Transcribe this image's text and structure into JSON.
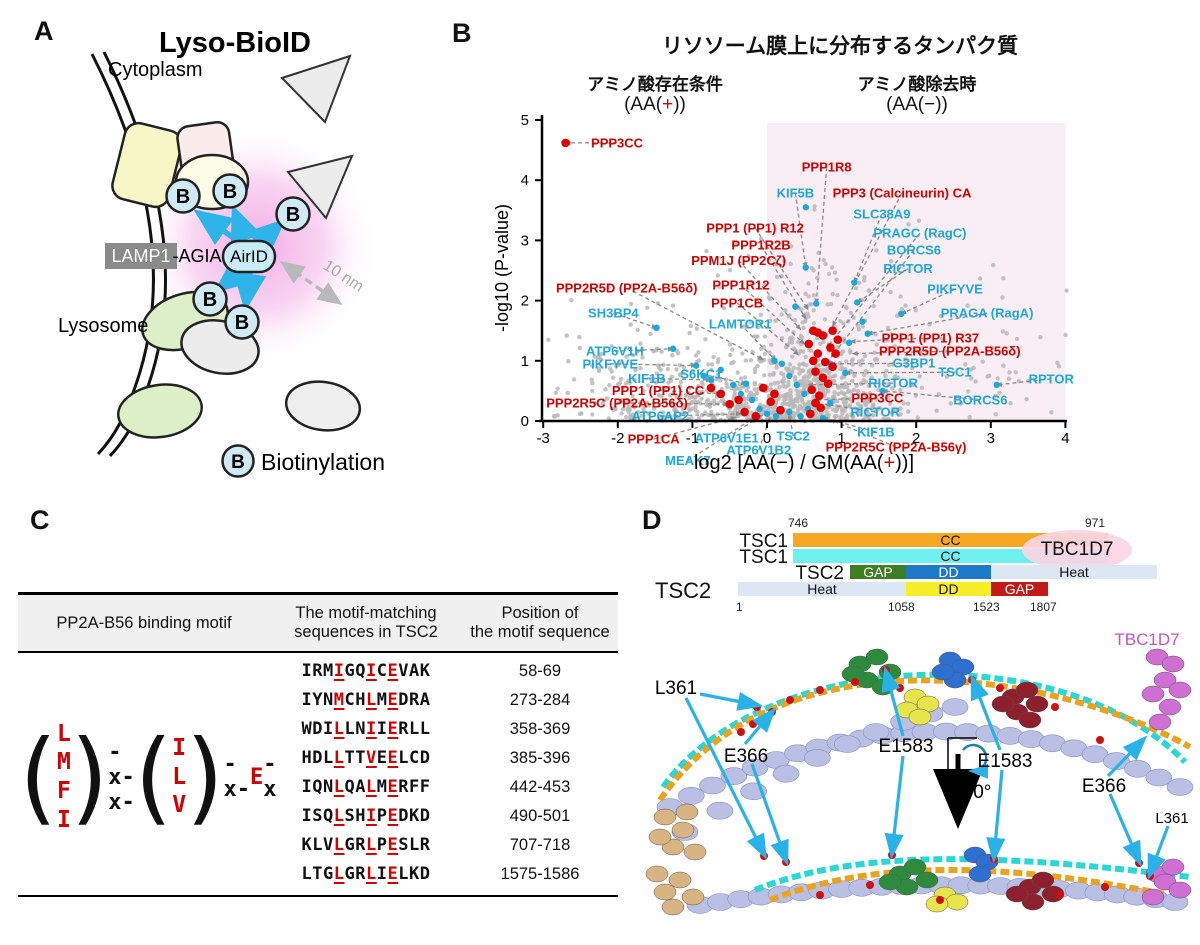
{
  "panels": {
    "A": {
      "panel_label": "A",
      "title": "Lyso-BioID",
      "cytoplasm": "Cytoplasm",
      "lysosome": "Lysosome",
      "lamp1": "LAMP1",
      "agia": "-AGIA-",
      "airid": "AirID",
      "distance": "10 nm",
      "b_letter": "B",
      "legend": "Biotinylation"
    },
    "B": {
      "panel_label": "B",
      "title": "リソソーム膜上に分布するタンパク質",
      "cond_left": "アミノ酸存在条件",
      "cond_left2_parts": [
        "(AA(",
        "+",
        "))"
      ],
      "cond_right": "アミノ酸除去時",
      "cond_right2": "(AA(−))",
      "ylabel": "-log10 (P-value)",
      "xlabel_parts": [
        "log2 [AA(−) / GM(AA(",
        "+",
        "))]"
      ]
    },
    "C": {
      "panel_label": "C",
      "headers": [
        [
          "PP2A-B56 binding motif"
        ],
        [
          "The motif-matching",
          "sequences in TSC2"
        ],
        [
          "Position of",
          "the motif sequence"
        ]
      ],
      "motif": {
        "group1": [
          "L",
          "M",
          "F",
          "I"
        ],
        "linker1": "-x-x-",
        "group2": [
          "I",
          "L",
          "V"
        ],
        "linker2": "-x-",
        "glu": "E",
        "linker3": "-x"
      },
      "red_indices": [
        3,
        6,
        8
      ],
      "rows": [
        {
          "seq": "IRMIGQICEVAK",
          "pos": "58-69"
        },
        {
          "seq": "IYNMCHLMEDRA",
          "pos": "273-284"
        },
        {
          "seq": "WDILLNIIERLL",
          "pos": "358-369"
        },
        {
          "seq": "HDLLTTVEELCD",
          "pos": "385-396"
        },
        {
          "seq": "IQNLQALMERFF",
          "pos": "442-453"
        },
        {
          "seq": "ISQLSHIPEDKD",
          "pos": "490-501"
        },
        {
          "seq": "KLVLGRLPESLR",
          "pos": "707-718"
        },
        {
          "seq": "LTGLGRLIELKD",
          "pos": "1575-1586"
        }
      ]
    },
    "D": {
      "panel_label": "D",
      "tsc1_row1": {
        "label": "TSC1",
        "start": "746",
        "end": "971",
        "domain": "CC"
      },
      "tsc1_row2": {
        "label": "TSC1",
        "domain": "CC"
      },
      "tbc1d7": "TBC1D7",
      "tsc2_row1": {
        "label": "TSC2",
        "segments": [
          "GAP",
          "DD",
          "Heat"
        ]
      },
      "tsc2_row2": {
        "label": "TSC2",
        "segments": [
          "Heat",
          "DD",
          "GAP"
        ],
        "ticks": [
          "1",
          "1058",
          "1523",
          "1807"
        ]
      },
      "residue_labels": [
        "L361",
        "E366",
        "E1583",
        "E1583",
        "E366",
        "L361"
      ],
      "tbc1d7_struct": "TBC1D7",
      "rotation": "90°"
    }
  },
  "chart_data": {
    "type": "scatter",
    "title": "リソソーム膜上に分布するタンパク質",
    "xlabel": "log2 [AA(−) / GM(AA(+))]",
    "ylabel": "-log10 (P-value)",
    "xlim": [
      -3,
      4
    ],
    "ylim": [
      0,
      5
    ],
    "xticks": [
      -3,
      -2,
      -1,
      0,
      1,
      2,
      3,
      4
    ],
    "yticks": [
      0,
      1,
      2,
      3,
      4,
      5
    ],
    "highlight_region": {
      "x0": 0,
      "x1": 4,
      "y0": 0,
      "y1": 4.95,
      "color": "#f8eef3"
    },
    "colors": {
      "red": "#d40000",
      "blue": "#1ba8dd",
      "gray": "#b9b9b9",
      "leader": "#8a8a8a"
    },
    "annotations": [
      [
        "PPP3CC",
        "r",
        -2.01,
        4.62,
        -2.7,
        4.62
      ],
      [
        "PPP1 (PP1) R12",
        "r",
        -0.16,
        3.21,
        0.55,
        1.85
      ],
      [
        "PPP1R2B",
        "r",
        -0.08,
        2.92,
        0.52,
        1.7
      ],
      [
        "PPM1J (PP2Cζ)",
        "r",
        -0.38,
        2.67,
        0.45,
        1.52
      ],
      [
        "PPP2R5D (PP2A-B56δ)",
        "r",
        -1.88,
        2.21,
        -0.05,
        1.02
      ],
      [
        "PPP1R12",
        "r",
        -0.35,
        2.26,
        0.5,
        1.28
      ],
      [
        "PPP1CB",
        "r",
        -0.4,
        1.96,
        0.42,
        1.1
      ],
      [
        "SH3BP4",
        "b",
        -2.06,
        1.79,
        -1.48,
        1.55
      ],
      [
        "LAMTOR1",
        "b",
        -0.36,
        1.61,
        0.12,
        1.0
      ],
      [
        "ATP6V1H",
        "b",
        -2.04,
        1.16,
        -1.26,
        1.2
      ],
      [
        "PIKFYVE",
        "b",
        -2.1,
        0.95,
        -0.95,
        0.92
      ],
      [
        "KIF1B",
        "b",
        -1.61,
        0.71,
        -0.75,
        0.68
      ],
      [
        "S6KC1",
        "b",
        -0.88,
        0.78,
        -0.28,
        0.62
      ],
      [
        "PPP1 (PP1) CC",
        "r",
        -1.46,
        0.51,
        -0.62,
        0.45
      ],
      [
        "PPP2R5C (PP2A-B56δ)",
        "r",
        -2.01,
        0.3,
        -0.52,
        0.28
      ],
      [
        "ATP6AP2",
        "b",
        -1.43,
        0.08,
        -0.35,
        0.12
      ],
      [
        "PPP1CA",
        "r",
        -1.52,
        -0.3,
        -0.42,
        0.06
      ],
      [
        "MEAK7",
        "b",
        -1.06,
        -0.66,
        -0.18,
        0.05
      ],
      [
        "ATP6V1E1",
        "b",
        -0.54,
        -0.28,
        -0.06,
        0.1
      ],
      [
        "ATP6V1B2",
        "b",
        -0.11,
        -0.48,
        0.04,
        0.06
      ],
      [
        "TSC2",
        "b",
        0.35,
        -0.25,
        0.3,
        0.12
      ],
      [
        "KIF5B",
        "b",
        0.38,
        3.79,
        0.52,
        2.55
      ],
      [
        "PPP1R8",
        "r",
        0.8,
        4.22,
        0.66,
        1.95
      ],
      [
        "PPP3 (Calcineurin) CA",
        "r",
        1.81,
        3.79,
        0.88,
        1.58
      ],
      [
        "SLC38A9",
        "b",
        1.54,
        3.44,
        1.17,
        2.3
      ],
      [
        "PRAGC (RagC)",
        "b",
        2.05,
        3.12,
        0.8,
        1.22
      ],
      [
        "BORCS6",
        "b",
        1.97,
        2.84,
        0.86,
        1.06
      ],
      [
        "RICTOR",
        "b",
        1.89,
        2.53,
        1.21,
        1.97
      ],
      [
        "PIKFYVE",
        "b",
        2.52,
        2.19,
        1.8,
        1.78
      ],
      [
        "PRAGA (RagA)",
        "b",
        2.95,
        1.79,
        1.35,
        1.45
      ],
      [
        "PPP1 (PP1) R37",
        "r",
        2.19,
        1.38,
        1.12,
        1.32
      ],
      [
        "PPP2R5D (PP2A-B56δ)",
        "r",
        2.45,
        1.16,
        1.15,
        1.12
      ],
      [
        "G3BP1",
        "b",
        1.97,
        0.96,
        0.85,
        0.95
      ],
      [
        "TSC1",
        "b",
        2.52,
        0.81,
        1.05,
        0.8
      ],
      [
        "RICTOR",
        "b",
        1.69,
        0.63,
        0.55,
        0.6
      ],
      [
        "RPTOR",
        "b",
        3.81,
        0.7,
        3.08,
        0.6
      ],
      [
        "PPP3CC",
        "r",
        1.48,
        0.38,
        0.62,
        0.35
      ],
      [
        "BORCS6",
        "b",
        2.86,
        0.35,
        1.55,
        0.5
      ],
      [
        "RICTOR",
        "b",
        1.45,
        0.15,
        0.78,
        0.28
      ],
      [
        "KIF1B",
        "b",
        1.46,
        -0.18,
        0.75,
        0.05
      ],
      [
        "PPP2R5C (PP2A-B56γ)",
        "r",
        1.73,
        -0.43,
        0.85,
        0.02
      ]
    ],
    "red_points": [
      [
        -2.7,
        4.62
      ],
      [
        0.62,
        1.5
      ],
      [
        0.68,
        1.47
      ],
      [
        0.75,
        1.42
      ],
      [
        0.56,
        1.28
      ],
      [
        0.85,
        1.22
      ],
      [
        0.68,
        1.12
      ],
      [
        0.92,
        1.12
      ],
      [
        0.62,
        1.0
      ],
      [
        0.78,
        0.98
      ],
      [
        0.88,
        0.9
      ],
      [
        0.65,
        0.82
      ],
      [
        0.75,
        0.72
      ],
      [
        0.82,
        0.62
      ],
      [
        0.6,
        0.52
      ],
      [
        0.7,
        0.42
      ],
      [
        0.65,
        0.3
      ],
      [
        0.72,
        0.22
      ],
      [
        0.58,
        0.12
      ],
      [
        -0.62,
        0.45
      ],
      [
        -0.5,
        0.28
      ],
      [
        -0.38,
        0.35
      ],
      [
        -0.3,
        0.15
      ],
      [
        -0.15,
        0.08
      ],
      [
        0.1,
        0.45
      ],
      [
        0.05,
        0.32
      ],
      [
        0.18,
        0.18
      ],
      [
        -0.05,
        0.55
      ],
      [
        -0.75,
        0.55
      ],
      [
        0.88,
        1.5
      ],
      [
        0.95,
        1.35
      ]
    ],
    "blue_points": [
      [
        -1.48,
        1.55
      ],
      [
        -1.26,
        1.2
      ],
      [
        -0.95,
        0.92
      ],
      [
        -0.85,
        0.75
      ],
      [
        -0.75,
        0.68
      ],
      [
        -0.62,
        0.85
      ],
      [
        -0.45,
        0.6
      ],
      [
        -0.35,
        0.45
      ],
      [
        -0.28,
        0.62
      ],
      [
        -0.2,
        0.35
      ],
      [
        -0.1,
        0.2
      ],
      [
        0.0,
        0.12
      ],
      [
        0.12,
        0.08
      ],
      [
        0.3,
        0.15
      ],
      [
        0.45,
        0.08
      ],
      [
        0.55,
        0.2
      ],
      [
        0.75,
        0.05
      ],
      [
        0.85,
        0.3
      ],
      [
        0.5,
        0.45
      ],
      [
        0.4,
        0.6
      ],
      [
        0.3,
        0.75
      ],
      [
        0.2,
        0.95
      ],
      [
        0.1,
        1.0
      ],
      [
        0.38,
        1.9
      ],
      [
        1.17,
        2.3
      ],
      [
        1.21,
        1.97
      ],
      [
        1.28,
        1.65
      ],
      [
        1.8,
        1.78
      ],
      [
        1.35,
        1.45
      ],
      [
        1.1,
        1.3
      ],
      [
        0.85,
        0.95
      ],
      [
        1.05,
        0.8
      ],
      [
        1.55,
        0.5
      ],
      [
        3.08,
        0.6
      ],
      [
        0.52,
        2.55
      ],
      [
        0.52,
        3.55
      ],
      [
        0.66,
        1.95
      ]
    ],
    "background": {
      "seed": 11,
      "clusters": [
        {
          "n": 420,
          "mx": 0.62,
          "sx": 0.5,
          "my": 0.0,
          "sy": 0.62
        },
        {
          "n": 300,
          "mx": -0.7,
          "sx": 0.8,
          "my": 0.0,
          "sy": 0.5
        },
        {
          "n": 200,
          "mx": 0.3,
          "sx": 1.6,
          "my": 0.0,
          "sy": 1.1
        },
        {
          "n": 90,
          "mx": 0.55,
          "sx": 0.45,
          "my": 1.8,
          "sy": 0.8
        },
        {
          "n": 55,
          "mx": -2.2,
          "sx": 0.6,
          "my": 0.6,
          "sy": 0.9
        },
        {
          "n": 30,
          "mx": 2.8,
          "sx": 0.7,
          "my": 0.8,
          "sy": 0.9
        }
      ]
    }
  }
}
